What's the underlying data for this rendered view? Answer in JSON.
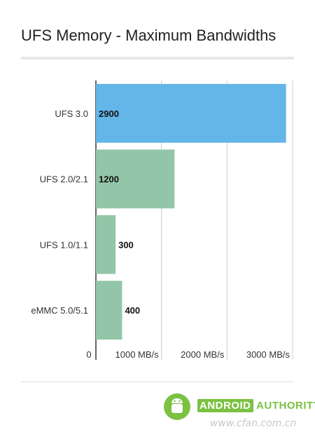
{
  "title": "UFS Memory - Maximum Bandwidths",
  "chart_data": {
    "type": "bar",
    "orientation": "horizontal",
    "title": "UFS Memory - Maximum Bandwidths",
    "categories": [
      "UFS 3.0",
      "UFS 2.0/2.1",
      "UFS 1.0/1.1",
      "eMMC 5.0/5.1"
    ],
    "values": [
      2900,
      1200,
      300,
      400
    ],
    "data_labels": [
      "2900",
      "1200",
      "300",
      "400"
    ],
    "bar_colors": [
      "#64b5e8",
      "#93c6a8",
      "#93c6a8",
      "#93c6a8"
    ],
    "xticks": [
      {
        "value": 0,
        "label": "0"
      },
      {
        "value": 1000,
        "label": "1000 MB/s"
      },
      {
        "value": 2000,
        "label": "2000 MB/s"
      },
      {
        "value": 3000,
        "label": "3000 MB/s"
      }
    ],
    "xlim": [
      0,
      3000
    ],
    "grid": "vertical",
    "legend": "none"
  },
  "branding": {
    "logo_word1": "ANDROID",
    "logo_word2": "AUTHORITY",
    "watermark": "www.cfan.com.cn"
  },
  "colors": {
    "highlight_bar": "#64b5e8",
    "bar": "#93c6a8",
    "gridline": "#cccccc",
    "brand_green": "#7bc142"
  }
}
